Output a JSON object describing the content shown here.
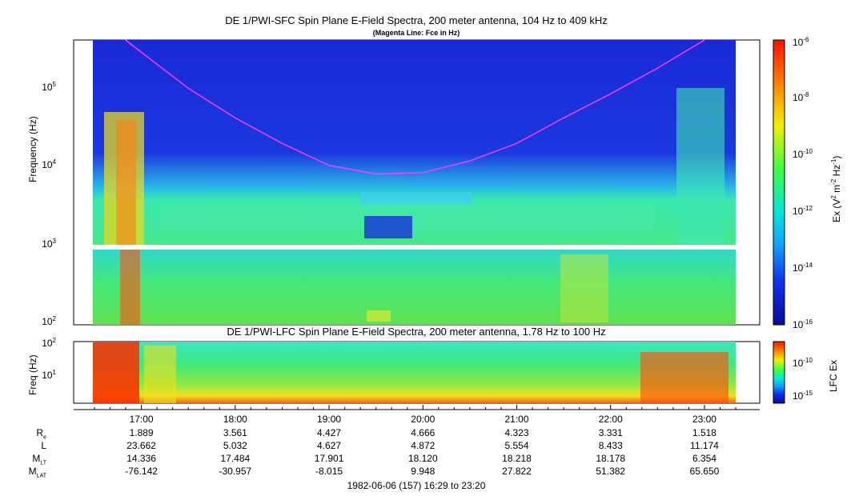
{
  "chart_data": [
    {
      "type": "heatmap",
      "title": "DE 1/PWI-SFC  Spin Plane E-Field Spectra, 200 meter antenna, 104 Hz to 409 kHz",
      "subtitle": "(Magenta Line: Fce in Hz)",
      "ylabel": "Frequency (Hz)",
      "yscale": "log",
      "ylim": [
        100,
        409000
      ],
      "yticks": [
        {
          "value": 100,
          "base": "10",
          "exp": "2"
        },
        {
          "value": 1000,
          "base": "10",
          "exp": "3"
        },
        {
          "value": 10000,
          "base": "10",
          "exp": "4"
        },
        {
          "value": 100000,
          "base": "10",
          "exp": "5"
        }
      ],
      "xlim_hours_ut": [
        16.483,
        23.333
      ],
      "colorbar": {
        "label_parts": {
          "pre": "Ex (V",
          "sup1": "2",
          "mid": " m",
          "sup2": "-2",
          "mid2": " Hz",
          "sup3": "-1",
          "post": ")"
        },
        "scale": "log",
        "range": [
          1e-16,
          1e-06
        ],
        "ticks": [
          {
            "value": 1e-06,
            "base": "10",
            "exp": "-6"
          },
          {
            "value": 1e-08,
            "base": "10",
            "exp": "-8"
          },
          {
            "value": 1e-10,
            "base": "10",
            "exp": "-10"
          },
          {
            "value": 1e-12,
            "base": "10",
            "exp": "-12"
          },
          {
            "value": 1e-14,
            "base": "10",
            "exp": "-14"
          },
          {
            "value": 1e-16,
            "base": "10",
            "exp": "-16"
          }
        ]
      },
      "overlay_line": {
        "color": "#ff3cff",
        "points_hours_freq": [
          [
            16.83,
            409000
          ],
          [
            17.5,
            100000
          ],
          [
            18.0,
            42000
          ],
          [
            18.5,
            20000
          ],
          [
            19.0,
            10500
          ],
          [
            19.5,
            8200
          ],
          [
            20.0,
            8500
          ],
          [
            20.5,
            12000
          ],
          [
            21.0,
            20000
          ],
          [
            21.5,
            42000
          ],
          [
            22.0,
            85000
          ],
          [
            22.5,
            180000
          ],
          [
            23.0,
            409000
          ]
        ]
      }
    },
    {
      "type": "heatmap",
      "title": "DE 1/PWI-LFC  Spin Plane E-Field Spectra, 200 meter antenna, 1.78 Hz to 100 Hz",
      "ylabel": "Freq (Hz)",
      "yscale": "log",
      "ylim": [
        1.78,
        100
      ],
      "yticks": [
        {
          "value": 10,
          "base": "10",
          "exp": "1"
        },
        {
          "value": 100,
          "base": "10",
          "exp": "2"
        }
      ],
      "colorbar": {
        "label": "LFC Ex",
        "scale": "log",
        "range": [
          1e-17,
          1e-07
        ],
        "ticks": [
          {
            "value": 1e-10,
            "base": "10",
            "exp": "-10"
          },
          {
            "value": 1e-15,
            "base": "10",
            "exp": "-15"
          }
        ]
      }
    }
  ],
  "time_axis": {
    "ticks": [
      "17:00",
      "18:00",
      "19:00",
      "20:00",
      "21:00",
      "22:00",
      "23:00"
    ],
    "tick_hours": [
      17,
      18,
      19,
      20,
      21,
      22,
      23
    ]
  },
  "ephemeris": {
    "rows": [
      {
        "label": "R",
        "sub": "e",
        "values": [
          "1.889",
          "3.561",
          "4.427",
          "4.666",
          "4.323",
          "3.331",
          "1.518"
        ]
      },
      {
        "label": "L",
        "sub": "",
        "values": [
          "23.662",
          "5.032",
          "4.627",
          "4.872",
          "5.554",
          "8.433",
          "11.174"
        ]
      },
      {
        "label": "M",
        "sub": "LT",
        "values": [
          "14.336",
          "17.484",
          "17.901",
          "18.120",
          "18.218",
          "18.178",
          "6.354"
        ]
      },
      {
        "label": "M",
        "sub": "LAT",
        "values": [
          "-76.142",
          "-30.957",
          "-8.015",
          "9.948",
          "27.822",
          "51.382",
          "65.650"
        ]
      }
    ]
  },
  "footer": "1982-06-06 (157) 16:29 to 23:20"
}
